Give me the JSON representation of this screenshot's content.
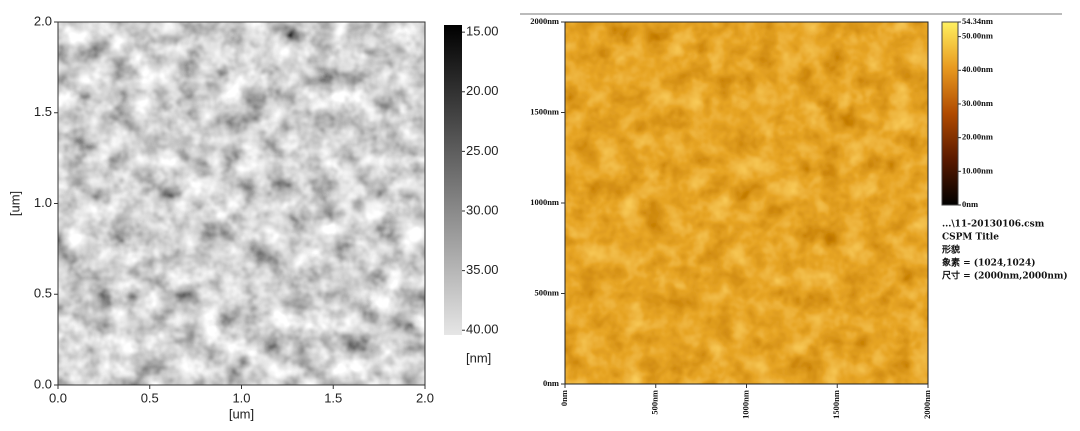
{
  "chart_data": [
    {
      "type": "heatmap",
      "xlabel": "[um]",
      "ylabel": "[um]",
      "xlim": [
        0,
        2
      ],
      "ylim": [
        0,
        2
      ],
      "xticks": [
        {
          "value": 0,
          "label": "0.0"
        },
        {
          "value": 0.5,
          "label": "0.5"
        },
        {
          "value": 1,
          "label": "1.0"
        },
        {
          "value": 1.5,
          "label": "1.5"
        },
        {
          "value": 2,
          "label": "2.0"
        }
      ],
      "yticks": [
        {
          "value": 0,
          "label": "0.0"
        },
        {
          "value": 0.5,
          "label": "0.5"
        },
        {
          "value": 1,
          "label": "1.0"
        },
        {
          "value": 1.5,
          "label": "1.5"
        },
        {
          "value": 2,
          "label": "2.0"
        }
      ],
      "colorbar": {
        "label": "[nm]",
        "clim": [
          14.4,
          40.4
        ],
        "reverse": true,
        "colors": [
          "#000000",
          "#e6e6e6"
        ],
        "ticks": [
          {
            "value": 15,
            "label": "15.00"
          },
          {
            "value": 20,
            "label": "20.00"
          },
          {
            "value": 25,
            "label": "25.00"
          },
          {
            "value": 30,
            "label": "30.00"
          },
          {
            "value": 35,
            "label": "35.00"
          },
          {
            "value": 40,
            "label": "40.00"
          }
        ]
      }
    },
    {
      "type": "heatmap",
      "xlim": [
        0,
        2000
      ],
      "ylim": [
        0,
        2000
      ],
      "xticks": [
        {
          "value": 0,
          "label": "0nm"
        },
        {
          "value": 500,
          "label": "500nm"
        },
        {
          "value": 1000,
          "label": "1000nm"
        },
        {
          "value": 1500,
          "label": "1500nm"
        },
        {
          "value": 2000,
          "label": "2000nm"
        }
      ],
      "yticks": [
        {
          "value": 0,
          "label": "0nm"
        },
        {
          "value": 500,
          "label": "500nm"
        },
        {
          "value": 1000,
          "label": "1000nm"
        },
        {
          "value": 1500,
          "label": "1500nm"
        },
        {
          "value": 2000,
          "label": "2000nm"
        }
      ],
      "colorbar": {
        "clim": [
          0,
          54.34
        ],
        "reverse": false,
        "colors": [
          "#000000",
          "#5a1a00",
          "#b04a00",
          "#e89a20",
          "#fff060"
        ],
        "ticks": [
          {
            "value": 0,
            "label": "0nm"
          },
          {
            "value": 10,
            "label": "10.00nm"
          },
          {
            "value": 20,
            "label": "20.00nm"
          },
          {
            "value": 30,
            "label": "30.00nm"
          },
          {
            "value": 40,
            "label": "40.00nm"
          },
          {
            "value": 50,
            "label": "50.00nm"
          },
          {
            "value": 54.34,
            "label": "54.34nm"
          }
        ]
      },
      "notes": [
        "...\\11-20130106.csm",
        "CSPM Title",
        "形貌",
        "象素 = (1024,1024)",
        "尺寸 = (2000nm,2000nm)"
      ]
    }
  ]
}
